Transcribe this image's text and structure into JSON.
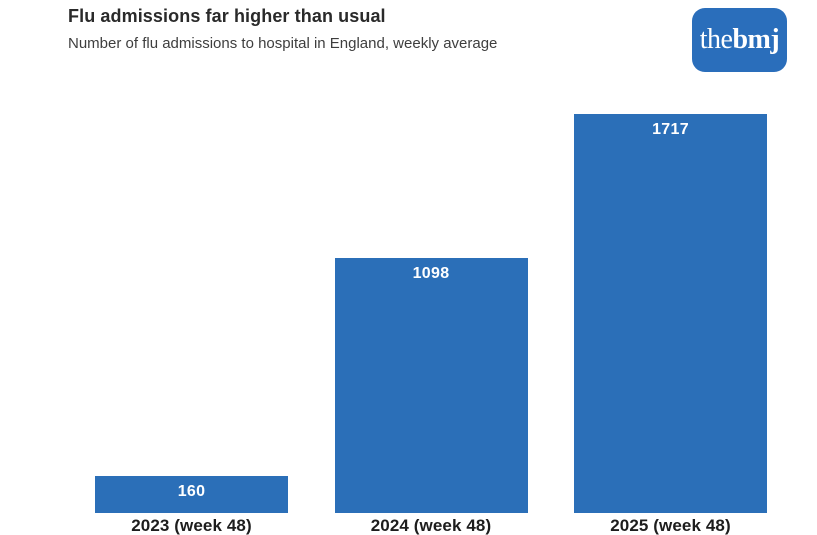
{
  "chart_data": {
    "type": "bar",
    "title": "Flu admissions far higher than usual",
    "subtitle": "Number of flu admissions to hospital in England, weekly average",
    "categories": [
      "2023 (week 48)",
      "2024 (week 48)",
      "2025 (week 48)"
    ],
    "values": [
      160,
      1098,
      1717
    ],
    "value_labels": [
      "160",
      "1098",
      "1717"
    ],
    "xlabel": "",
    "ylabel": "",
    "ylim": [
      0,
      1717
    ],
    "grid": false,
    "legend": "none",
    "orientation": "vertical",
    "bar_color": "#2b6fb8",
    "value_label_color": "#ffffff",
    "tick_label_color": "#1d1d1d",
    "title_color": "#2a2a2a",
    "subtitle_color": "#3e3e3e",
    "background_color": "#ffffff"
  },
  "logo": {
    "text_regular": "the",
    "text_bold": "bmj",
    "bg_color": "#2a6ebb",
    "text_color": "#ffffff"
  }
}
